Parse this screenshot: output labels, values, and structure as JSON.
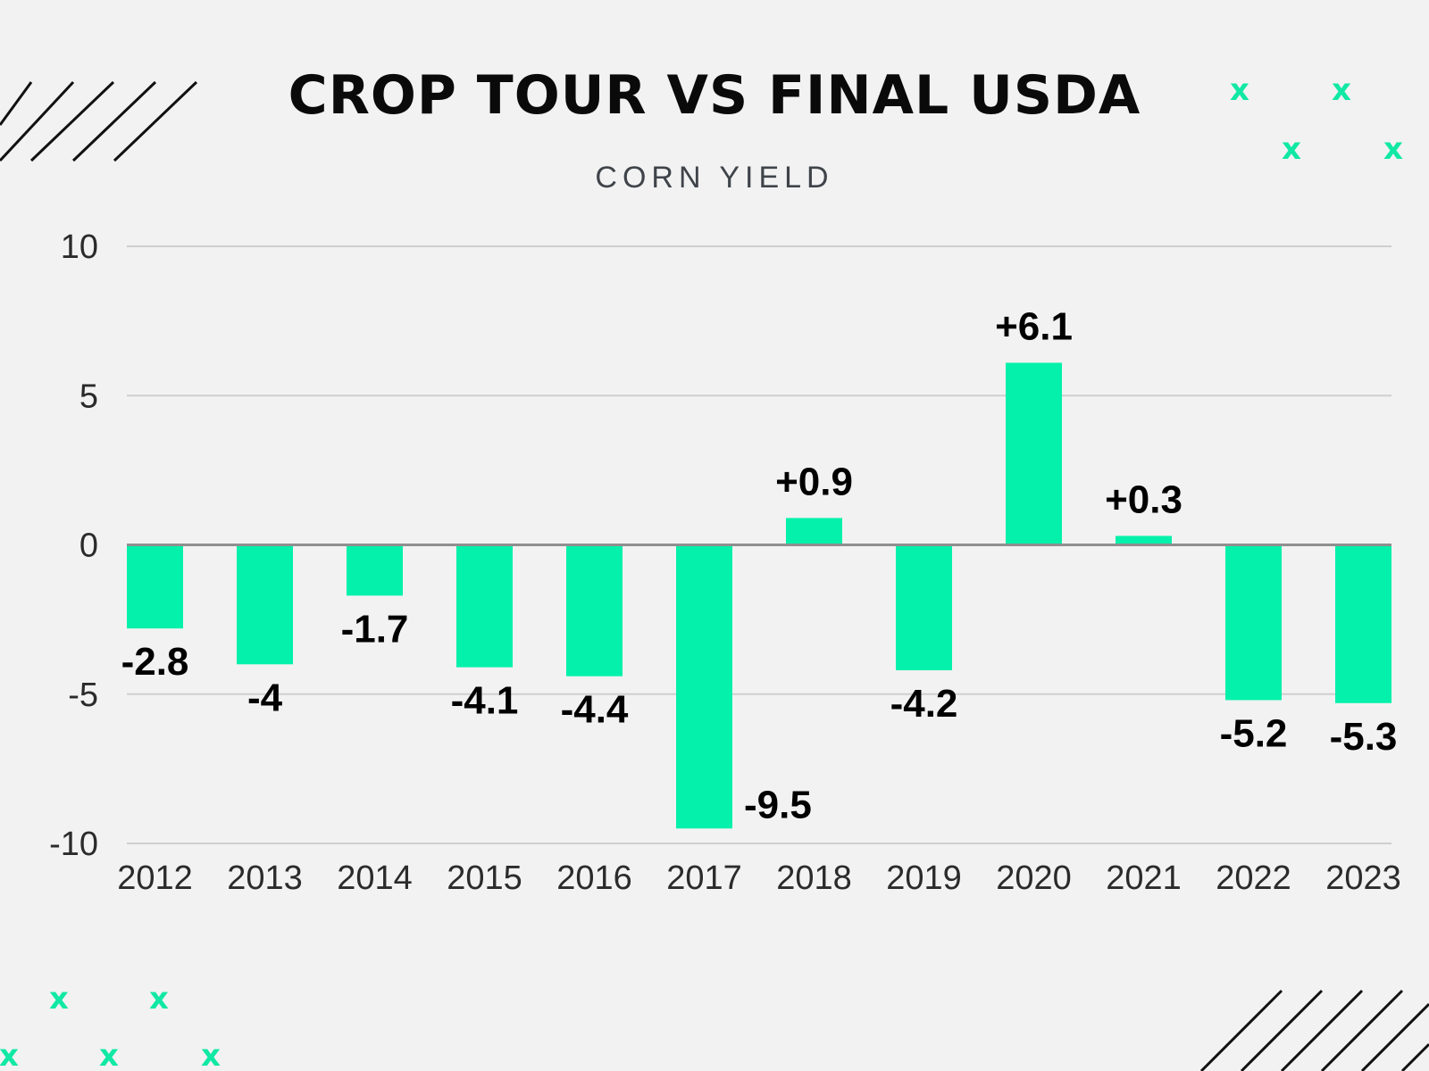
{
  "accent_color": "#03f1aa",
  "decor_color": "#10e8a4",
  "chart_data": {
    "type": "bar",
    "title": "CROP TOUR VS FINAL USDA",
    "subtitle": "CORN YIELD",
    "xlabel": "",
    "ylabel": "",
    "ylim": [
      -10,
      10
    ],
    "yticks": [
      10,
      5,
      0,
      -5,
      -10
    ],
    "grid": true,
    "categories": [
      "2012",
      "2013",
      "2014",
      "2015",
      "2016",
      "2017",
      "2018",
      "2019",
      "2020",
      "2021",
      "2022",
      "2023"
    ],
    "values": [
      -2.8,
      -4,
      -1.7,
      -4.1,
      -4.4,
      -9.5,
      0.9,
      -4.2,
      6.1,
      0.3,
      -5.2,
      -5.3
    ],
    "data_labels": [
      "-2.8",
      "-4",
      "-1.7",
      "-4.1",
      "-4.4",
      "-9.5",
      "+0.9",
      "-4.2",
      "+6.1",
      "+0.3",
      "-5.2",
      "-5.3"
    ]
  },
  "decorations": {
    "x_mark_symbol": "x"
  }
}
